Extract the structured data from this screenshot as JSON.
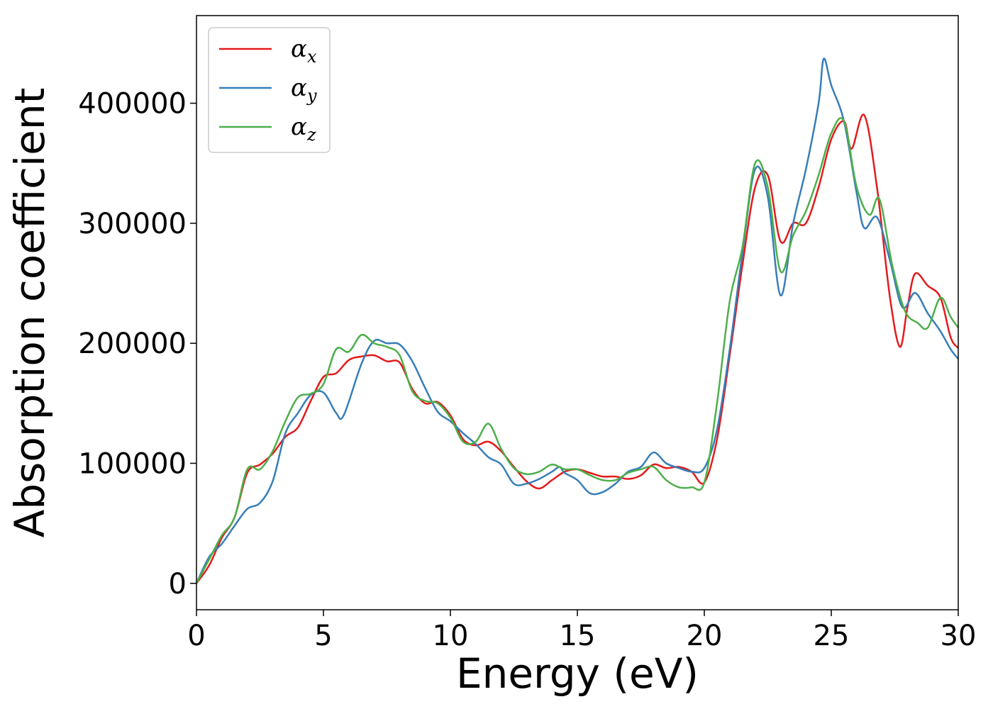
{
  "chart_data": {
    "type": "line",
    "title": "",
    "xlabel": "Energy (eV)",
    "ylabel": "Absorption coefficient",
    "xlim": [
      0,
      30
    ],
    "ylim": [
      -22000,
      473000
    ],
    "xticks": [
      0,
      5,
      10,
      15,
      20,
      25,
      30
    ],
    "yticks": [
      0,
      100000,
      200000,
      300000,
      400000
    ],
    "xtick_labels": [
      "0",
      "5",
      "10",
      "15",
      "20",
      "25",
      "30"
    ],
    "ytick_labels": [
      "0",
      "100000",
      "200000",
      "300000",
      "400000"
    ],
    "grid": false,
    "legend_position": "top-left",
    "series": [
      {
        "name": "α_x",
        "symbol": "α",
        "subscript": "x",
        "color": "#e41a1c",
        "points": [
          [
            0,
            0
          ],
          [
            0.5,
            15000
          ],
          [
            1,
            38000
          ],
          [
            1.5,
            55000
          ],
          [
            2,
            92000
          ],
          [
            2.5,
            99000
          ],
          [
            3,
            108000
          ],
          [
            3.5,
            122000
          ],
          [
            4,
            130000
          ],
          [
            4.5,
            152000
          ],
          [
            5,
            172000
          ],
          [
            5.5,
            175000
          ],
          [
            6,
            186000
          ],
          [
            6.5,
            189000
          ],
          [
            7,
            190000
          ],
          [
            7.5,
            185000
          ],
          [
            8,
            184000
          ],
          [
            8.5,
            162000
          ],
          [
            9,
            150000
          ],
          [
            9.5,
            151000
          ],
          [
            10,
            140000
          ],
          [
            10.5,
            120000
          ],
          [
            11,
            115000
          ],
          [
            11.5,
            118000
          ],
          [
            12,
            110000
          ],
          [
            12.5,
            97000
          ],
          [
            13,
            85000
          ],
          [
            13.5,
            79000
          ],
          [
            14,
            86000
          ],
          [
            14.5,
            93000
          ],
          [
            15,
            95000
          ],
          [
            15.5,
            92000
          ],
          [
            16,
            89000
          ],
          [
            16.5,
            89000
          ],
          [
            17,
            87000
          ],
          [
            17.5,
            90000
          ],
          [
            18,
            99000
          ],
          [
            18.5,
            96000
          ],
          [
            19,
            97000
          ],
          [
            19.5,
            93000
          ],
          [
            20,
            84000
          ],
          [
            20.5,
            120000
          ],
          [
            21,
            190000
          ],
          [
            21.5,
            265000
          ],
          [
            22,
            330000
          ],
          [
            22.5,
            340000
          ],
          [
            23,
            285000
          ],
          [
            23.5,
            300000
          ],
          [
            24,
            300000
          ],
          [
            24.5,
            330000
          ],
          [
            25,
            370000
          ],
          [
            25.5,
            385000
          ],
          [
            25.8,
            362000
          ],
          [
            26.3,
            390000
          ],
          [
            26.8,
            330000
          ],
          [
            27.3,
            240000
          ],
          [
            27.7,
            197000
          ],
          [
            28,
            230000
          ],
          [
            28.3,
            258000
          ],
          [
            28.8,
            248000
          ],
          [
            29.3,
            238000
          ],
          [
            29.7,
            205000
          ],
          [
            30,
            196000
          ]
        ]
      },
      {
        "name": "α_y",
        "symbol": "α",
        "subscript": "y",
        "color": "#377eb8",
        "points": [
          [
            0,
            0
          ],
          [
            0.5,
            22000
          ],
          [
            1,
            33000
          ],
          [
            1.5,
            48000
          ],
          [
            2,
            62000
          ],
          [
            2.5,
            67000
          ],
          [
            3,
            85000
          ],
          [
            3.5,
            125000
          ],
          [
            4,
            142000
          ],
          [
            4.5,
            157000
          ],
          [
            5,
            159000
          ],
          [
            5.5,
            142000
          ],
          [
            5.8,
            140000
          ],
          [
            6.5,
            183000
          ],
          [
            7,
            202000
          ],
          [
            7.5,
            200000
          ],
          [
            8,
            199000
          ],
          [
            8.5,
            185000
          ],
          [
            9,
            163000
          ],
          [
            9.5,
            143000
          ],
          [
            10,
            135000
          ],
          [
            10.5,
            125000
          ],
          [
            11,
            116000
          ],
          [
            11.5,
            105000
          ],
          [
            12,
            99000
          ],
          [
            12.5,
            83000
          ],
          [
            13,
            83000
          ],
          [
            13.5,
            87000
          ],
          [
            14,
            93000
          ],
          [
            14.3,
            97000
          ],
          [
            14.5,
            92000
          ],
          [
            15,
            86000
          ],
          [
            15.5,
            75000
          ],
          [
            16,
            76000
          ],
          [
            16.5,
            83000
          ],
          [
            17,
            93000
          ],
          [
            17.5,
            97000
          ],
          [
            18,
            109000
          ],
          [
            18.5,
            100000
          ],
          [
            19,
            96000
          ],
          [
            19.5,
            93000
          ],
          [
            20,
            96000
          ],
          [
            20.5,
            128000
          ],
          [
            21,
            195000
          ],
          [
            21.5,
            275000
          ],
          [
            22,
            345000
          ],
          [
            22.5,
            322000
          ],
          [
            23,
            240000
          ],
          [
            23.5,
            300000
          ],
          [
            24,
            345000
          ],
          [
            24.5,
            400000
          ],
          [
            24.7,
            437000
          ],
          [
            25,
            415000
          ],
          [
            25.5,
            385000
          ],
          [
            26,
            325000
          ],
          [
            26.3,
            296000
          ],
          [
            26.8,
            305000
          ],
          [
            27.3,
            270000
          ],
          [
            27.8,
            230000
          ],
          [
            28.3,
            242000
          ],
          [
            28.8,
            225000
          ],
          [
            29.3,
            210000
          ],
          [
            29.7,
            195000
          ],
          [
            30,
            187000
          ]
        ]
      },
      {
        "name": "α_z",
        "symbol": "α",
        "subscript": "z",
        "color": "#4daf4a",
        "points": [
          [
            0,
            0
          ],
          [
            0.5,
            20000
          ],
          [
            1,
            40000
          ],
          [
            1.5,
            55000
          ],
          [
            2,
            95000
          ],
          [
            2.5,
            95000
          ],
          [
            3,
            110000
          ],
          [
            3.5,
            135000
          ],
          [
            4,
            155000
          ],
          [
            4.5,
            158000
          ],
          [
            5,
            166000
          ],
          [
            5.5,
            195000
          ],
          [
            6,
            193000
          ],
          [
            6.5,
            207000
          ],
          [
            7,
            200000
          ],
          [
            7.5,
            197000
          ],
          [
            8,
            190000
          ],
          [
            8.5,
            160000
          ],
          [
            9,
            152000
          ],
          [
            9.5,
            150000
          ],
          [
            10,
            138000
          ],
          [
            10.5,
            118000
          ],
          [
            11,
            118000
          ],
          [
            11.5,
            133000
          ],
          [
            12,
            112000
          ],
          [
            12.5,
            96000
          ],
          [
            13,
            91000
          ],
          [
            13.5,
            93000
          ],
          [
            14,
            99000
          ],
          [
            14.5,
            95000
          ],
          [
            15,
            95000
          ],
          [
            15.5,
            90000
          ],
          [
            16,
            86000
          ],
          [
            16.5,
            86000
          ],
          [
            17,
            92000
          ],
          [
            17.5,
            95000
          ],
          [
            18,
            97000
          ],
          [
            18.5,
            86000
          ],
          [
            19,
            80000
          ],
          [
            19.5,
            80000
          ],
          [
            20,
            84000
          ],
          [
            20.5,
            150000
          ],
          [
            21,
            235000
          ],
          [
            21.5,
            280000
          ],
          [
            22,
            350000
          ],
          [
            22.5,
            330000
          ],
          [
            23,
            260000
          ],
          [
            23.5,
            290000
          ],
          [
            24,
            310000
          ],
          [
            24.5,
            340000
          ],
          [
            25,
            375000
          ],
          [
            25.5,
            385000
          ],
          [
            26,
            330000
          ],
          [
            26.5,
            307000
          ],
          [
            26.9,
            320000
          ],
          [
            27.4,
            265000
          ],
          [
            27.9,
            227000
          ],
          [
            28.4,
            217000
          ],
          [
            28.8,
            213000
          ],
          [
            29.3,
            238000
          ],
          [
            29.7,
            222000
          ],
          [
            30,
            213000
          ]
        ]
      }
    ]
  }
}
